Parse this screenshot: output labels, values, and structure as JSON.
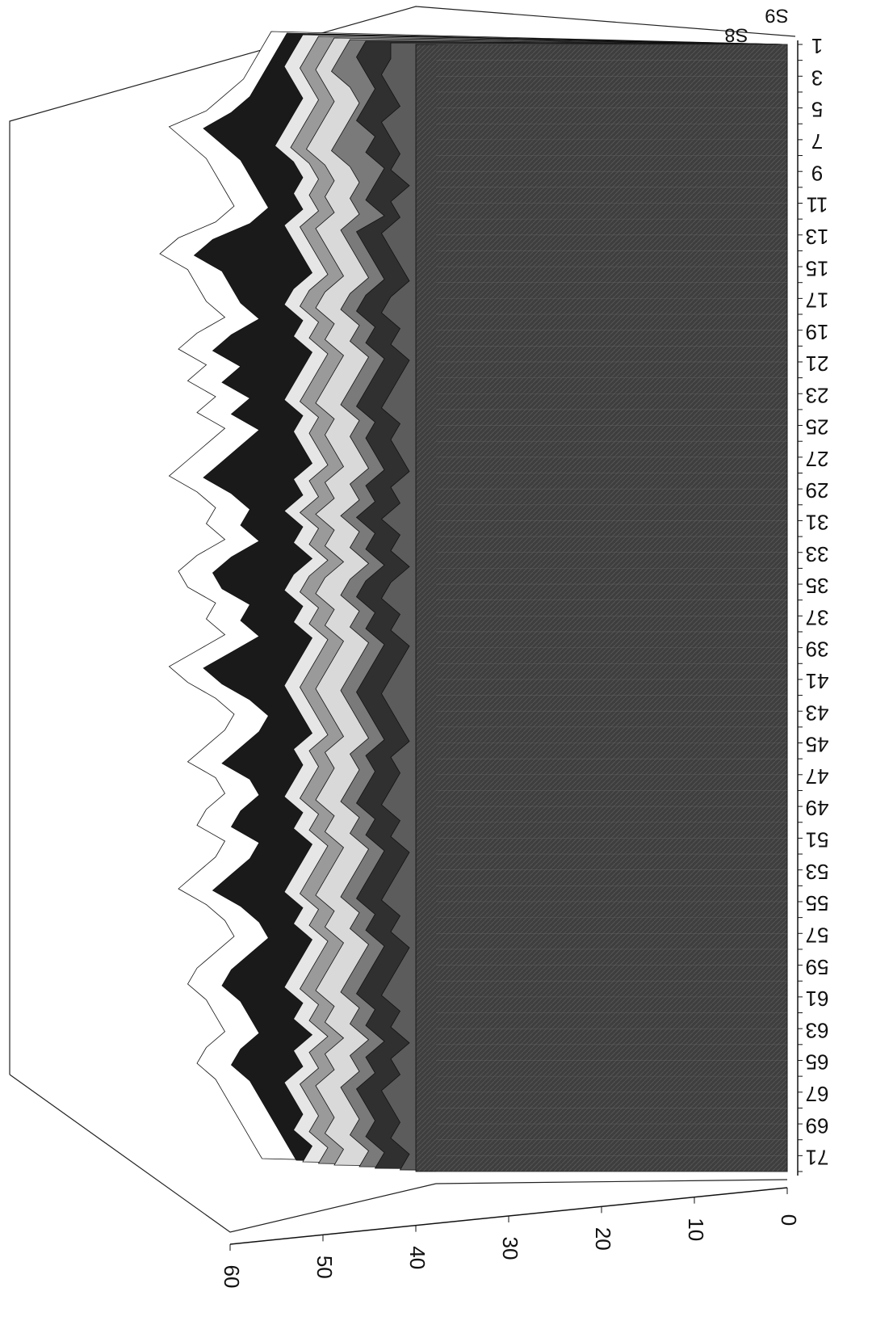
{
  "chart_data": {
    "type": "area",
    "title": "",
    "xlabel": "",
    "ylabel": "",
    "zlabel": "",
    "rotation": "rotated 90 degrees clockwise; 3D stacked area (surface) plot",
    "grid": false,
    "legend": "none",
    "x_tick_labels": [
      "1",
      "3",
      "5",
      "7",
      "9",
      "11",
      "13",
      "15",
      "17",
      "19",
      "21",
      "23",
      "25",
      "27",
      "29",
      "31",
      "33",
      "35",
      "37",
      "39",
      "41",
      "43",
      "45",
      "47",
      "49",
      "51",
      "53",
      "55",
      "57",
      "59",
      "61",
      "63",
      "65",
      "67",
      "69",
      "71"
    ],
    "z_tick_labels": [
      "0",
      "10",
      "20",
      "30",
      "40",
      "50",
      "60"
    ],
    "zlim": [
      0,
      60
    ],
    "series_labels": [
      "S9",
      "S8"
    ],
    "series": [
      {
        "name": "S9",
        "fill": "#4a4a4a",
        "values": [
          40,
          40,
          40,
          40,
          40,
          40,
          40,
          40,
          40,
          40,
          40,
          40,
          40,
          40,
          40,
          40,
          40,
          40,
          40,
          40,
          40,
          40,
          40,
          40,
          40,
          40,
          40,
          40,
          40,
          40,
          40,
          40,
          40,
          40,
          40,
          40,
          40,
          40,
          40,
          40,
          40,
          40,
          40,
          40,
          40,
          40,
          40,
          40,
          40,
          40,
          40,
          40,
          40,
          40,
          40,
          40,
          40,
          40,
          40,
          40,
          40,
          40,
          40,
          40,
          40,
          40,
          40,
          40,
          40,
          40,
          40,
          40
        ]
      },
      {
        "name": "S8",
        "fill": "#5c5c5c",
        "values": [
          42,
          42,
          43,
          42,
          41,
          43,
          42,
          41,
          42,
          40,
          42,
          41,
          43,
          42,
          41,
          40,
          42,
          43,
          41,
          42,
          40,
          41,
          42,
          43,
          41,
          42,
          41,
          40,
          42,
          41,
          43,
          41,
          42,
          40,
          42,
          43,
          41,
          42,
          40,
          41,
          42,
          43,
          42,
          41,
          40,
          42,
          41,
          42,
          43,
          41,
          42,
          40,
          41,
          42,
          43,
          41,
          42,
          40,
          41,
          42,
          43,
          41,
          42,
          40,
          42,
          41,
          43,
          42,
          41,
          42,
          40,
          41
        ]
      },
      {
        "name": "",
        "fill": "#303030",
        "values": [
          44,
          45,
          44,
          43,
          44,
          45,
          43,
          44,
          42,
          43,
          44,
          42,
          45,
          44,
          43,
          42,
          44,
          45,
          43,
          44,
          42,
          43,
          44,
          45,
          43,
          44,
          43,
          42,
          44,
          43,
          45,
          43,
          44,
          42,
          44,
          45,
          43,
          44,
          42,
          43,
          44,
          45,
          44,
          43,
          42,
          44,
          43,
          44,
          45,
          43,
          44,
          42,
          43,
          44,
          45,
          43,
          44,
          42,
          43,
          44,
          45,
          43,
          44,
          42,
          44,
          43,
          45,
          44,
          43,
          44,
          42,
          43
        ]
      },
      {
        "name": "",
        "fill": "#7a7a7a",
        "values": [
          45,
          46,
          47,
          45,
          44,
          45,
          46,
          47,
          45,
          44,
          45,
          44,
          46,
          45,
          44,
          43,
          45,
          46,
          44,
          45,
          43,
          44,
          45,
          46,
          44,
          45,
          44,
          43,
          45,
          44,
          46,
          44,
          45,
          43,
          45,
          46,
          44,
          45,
          43,
          44,
          45,
          46,
          45,
          44,
          43,
          45,
          44,
          45,
          46,
          44,
          45,
          43,
          44,
          45,
          46,
          44,
          45,
          43,
          44,
          45,
          46,
          44,
          45,
          43,
          45,
          44,
          46,
          45,
          44,
          45,
          43,
          44
        ]
      },
      {
        "name": "",
        "fill": "#d9d9d9",
        "values": [
          46,
          47,
          48,
          47,
          46,
          47,
          48,
          49,
          47,
          46,
          47,
          46,
          48,
          47,
          46,
          45,
          47,
          48,
          46,
          47,
          45,
          46,
          47,
          48,
          46,
          47,
          46,
          45,
          47,
          46,
          48,
          46,
          47,
          45,
          47,
          48,
          46,
          47,
          45,
          46,
          47,
          48,
          47,
          46,
          45,
          47,
          46,
          47,
          48,
          46,
          47,
          45,
          46,
          47,
          48,
          46,
          47,
          45,
          46,
          47,
          48,
          46,
          47,
          45,
          47,
          46,
          48,
          47,
          46,
          47,
          45,
          46
        ]
      },
      {
        "name": "",
        "fill": "#9a9a9a",
        "values": [
          47,
          48,
          49,
          48,
          47,
          48,
          49,
          50,
          48,
          47,
          48,
          47,
          49,
          48,
          47,
          46,
          48,
          49,
          47,
          48,
          46,
          47,
          48,
          49,
          47,
          48,
          47,
          46,
          48,
          47,
          49,
          47,
          48,
          46,
          48,
          49,
          47,
          48,
          46,
          47,
          48,
          49,
          48,
          47,
          46,
          48,
          47,
          48,
          49,
          47,
          48,
          46,
          47,
          48,
          49,
          47,
          48,
          46,
          47,
          48,
          49,
          47,
          48,
          46,
          48,
          47,
          49,
          48,
          47,
          48,
          46,
          47
        ]
      },
      {
        "name": "",
        "fill": "#e6e6e6",
        "values": [
          48,
          49,
          50,
          49,
          48,
          49,
          50,
          51,
          49,
          48,
          49,
          48,
          50,
          49,
          48,
          47,
          49,
          50,
          48,
          49,
          47,
          48,
          49,
          50,
          48,
          49,
          48,
          47,
          49,
          48,
          50,
          48,
          49,
          47,
          49,
          50,
          48,
          49,
          47,
          48,
          49,
          50,
          49,
          48,
          47,
          49,
          48,
          49,
          50,
          48,
          49,
          47,
          48,
          49,
          50,
          48,
          49,
          47,
          48,
          49,
          50,
          48,
          49,
          47,
          49,
          48,
          50,
          49,
          48,
          49,
          47,
          48
        ]
      },
      {
        "name": "",
        "fill": "#1a1a1a",
        "values": [
          49,
          50,
          51,
          52,
          53,
          55,
          58,
          56,
          54,
          53,
          52,
          51,
          53,
          57,
          59,
          56,
          55,
          54,
          52,
          55,
          57,
          54,
          56,
          53,
          55,
          52,
          54,
          56,
          58,
          55,
          53,
          54,
          52,
          55,
          57,
          56,
          53,
          54,
          52,
          55,
          58,
          56,
          53,
          51,
          52,
          54,
          56,
          53,
          52,
          54,
          55,
          52,
          53,
          55,
          57,
          54,
          52,
          51,
          53,
          55,
          56,
          54,
          53,
          52,
          54,
          55,
          53,
          52,
          51,
          50,
          49,
          48
        ]
      },
      {
        "name": "",
        "fill": "#ffffff",
        "values": [
          50,
          51,
          52,
          53,
          55,
          57,
          61,
          59,
          57,
          56,
          55,
          54,
          56,
          60,
          62,
          59,
          58,
          57,
          55,
          58,
          60,
          57,
          59,
          56,
          58,
          55,
          57,
          59,
          61,
          58,
          56,
          57,
          55,
          58,
          60,
          59,
          56,
          57,
          55,
          58,
          61,
          59,
          56,
          54,
          55,
          57,
          59,
          56,
          55,
          57,
          58,
          55,
          56,
          58,
          60,
          57,
          55,
          54,
          56,
          58,
          59,
          57,
          56,
          55,
          57,
          58,
          56,
          55,
          54,
          53,
          52,
          51
        ]
      }
    ]
  }
}
